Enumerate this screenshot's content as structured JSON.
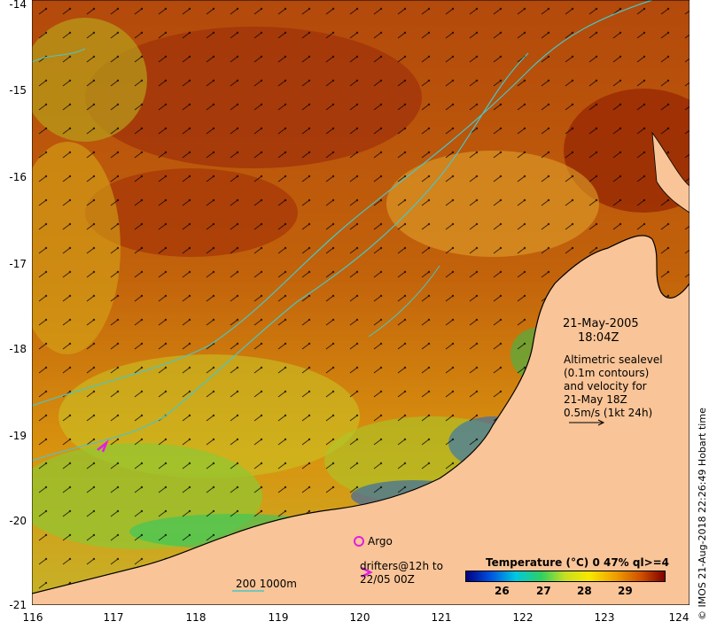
{
  "map": {
    "title_date": "21-May-2005",
    "title_time": "18:04Z",
    "lat_ticks": [
      "-14",
      "-15",
      "-16",
      "-17",
      "-18",
      "-19",
      "-20",
      "-21"
    ],
    "lon_ticks": [
      "116",
      "117",
      "118",
      "119",
      "120",
      "121",
      "122",
      "123",
      "124"
    ],
    "altimetry_line1": "Altimetric sealevel",
    "altimetry_line2": "(0.1m contours)",
    "altimetry_line3": "and velocity for",
    "altimetry_line4": "21-May 18Z",
    "velocity_scale": "0.5m/s (1kt 24h)",
    "argo_label": "Argo",
    "drifters_line1": "drifters@12h to",
    "drifters_line2": "22/05 00Z",
    "isobath_label": "200  1000m",
    "colorbar_title": "Temperature (°C) 0 47% ql>=4",
    "colorbar_ticks": [
      "26",
      "27",
      "28",
      "29"
    ],
    "credit": "© IMOS 21-Aug-2018 22:26:49 Hobart time",
    "colors": {
      "land": "#f9c497",
      "sst_warm": "#a83a08",
      "sst_mid": "#e8920f",
      "sst_cool": "#2fae2f",
      "contour": "#49c6c6",
      "argo": "#e020e0"
    }
  }
}
